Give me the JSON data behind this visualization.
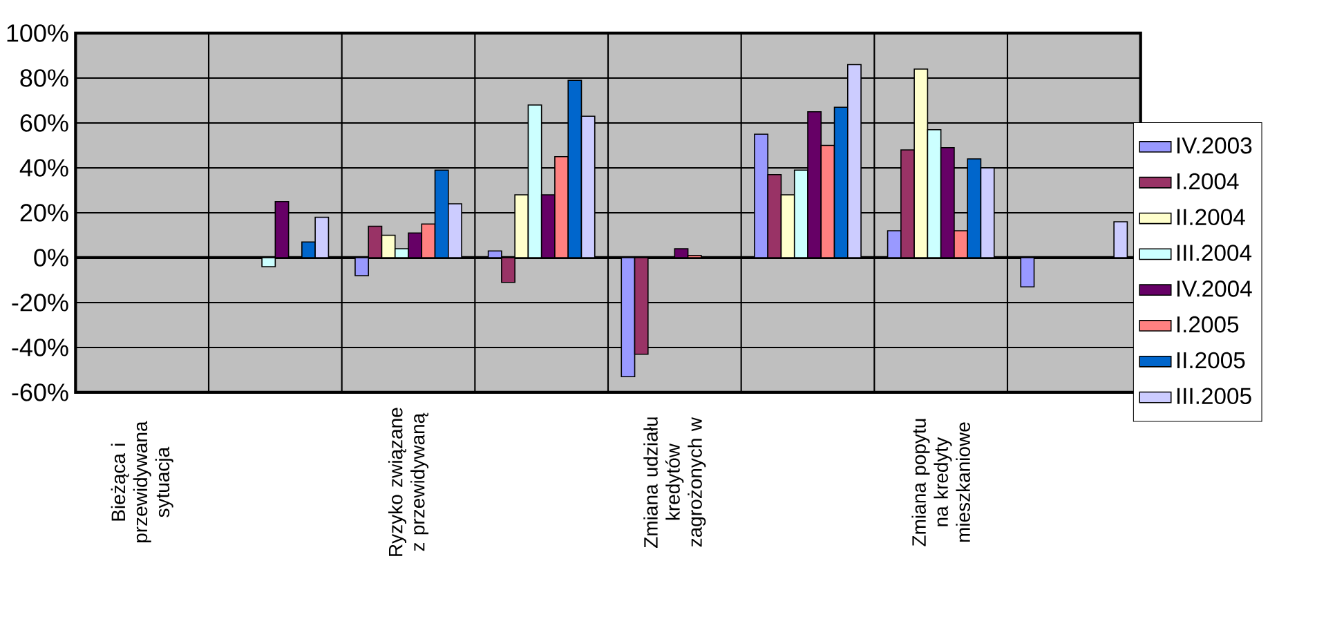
{
  "chart_data": {
    "type": "bar",
    "categories": [
      "Bieżąca i przewidywana sytuacja",
      null,
      "Ryzyko związane z przewidywaną",
      null,
      "Zmiana udziału kredytów zagrożonych w",
      null,
      "Zmiana popytu na kredyty mieszkaniowe",
      null
    ],
    "series": [
      {
        "name": "IV.2003",
        "color": "#9999ff",
        "values": [
          null,
          null,
          -8,
          3,
          -53,
          55,
          12,
          -13
        ]
      },
      {
        "name": "I.2004",
        "color": "#993366",
        "values": [
          null,
          null,
          14,
          -11,
          -43,
          37,
          48,
          null
        ]
      },
      {
        "name": "II.2004",
        "color": "#ffffcc",
        "values": [
          null,
          null,
          10,
          28,
          null,
          28,
          84,
          null
        ]
      },
      {
        "name": "III.2004",
        "color": "#ccffff",
        "values": [
          null,
          -4,
          4,
          68,
          null,
          39,
          57,
          null
        ]
      },
      {
        "name": "IV.2004",
        "color": "#660066",
        "values": [
          null,
          25,
          11,
          28,
          4,
          65,
          49,
          null
        ]
      },
      {
        "name": "I.2005",
        "color": "#ff8080",
        "values": [
          null,
          null,
          15,
          45,
          1,
          50,
          12,
          null
        ]
      },
      {
        "name": "II.2005",
        "color": "#0066cc",
        "values": [
          null,
          7,
          39,
          79,
          null,
          67,
          44,
          null
        ]
      },
      {
        "name": "III.2005",
        "color": "#ccccff",
        "values": [
          null,
          18,
          24,
          63,
          null,
          86,
          40,
          16
        ]
      }
    ],
    "ylim": [
      -60,
      100
    ],
    "yticks": [
      {
        "value": -60,
        "label": "-60%"
      },
      {
        "value": -40,
        "label": "-40%"
      },
      {
        "value": -20,
        "label": "-20%"
      },
      {
        "value": 0,
        "label": "0%"
      },
      {
        "value": 20,
        "label": "20%"
      },
      {
        "value": 40,
        "label": "40%"
      },
      {
        "value": 60,
        "label": "60%"
      },
      {
        "value": 80,
        "label": "80%"
      },
      {
        "value": 100,
        "label": "100%"
      }
    ],
    "grid": true,
    "legend": "right"
  }
}
